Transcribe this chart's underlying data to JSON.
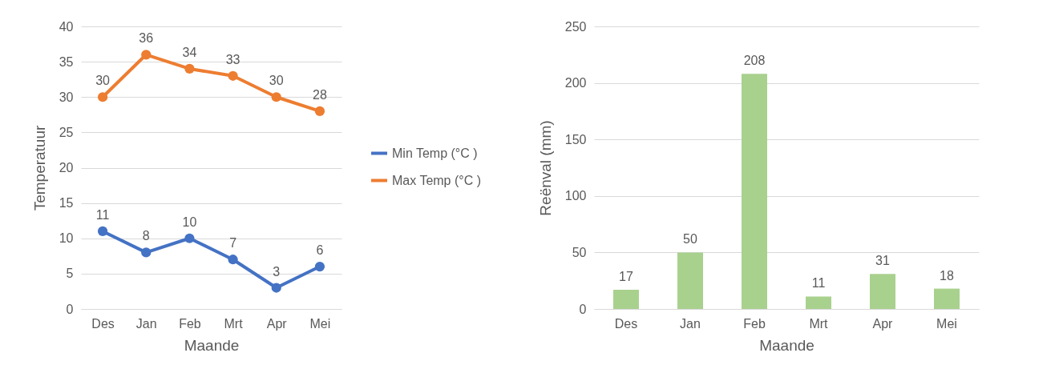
{
  "chart_data": [
    {
      "type": "line",
      "xlabel": "Maande",
      "ylabel": "Temperatuur",
      "categories": [
        "Des",
        "Jan",
        "Feb",
        "Mrt",
        "Apr",
        "Mei"
      ],
      "series": [
        {
          "name": "Min Temp (°C )",
          "color": "#4472c4",
          "values": [
            11,
            8,
            10,
            7,
            3,
            6
          ]
        },
        {
          "name": "Max Temp (°C )",
          "color": "#ed7d31",
          "values": [
            30,
            36,
            34,
            33,
            30,
            28
          ]
        }
      ],
      "ylim": [
        0,
        40
      ],
      "yticks": [
        0,
        5,
        10,
        15,
        20,
        25,
        30,
        35,
        40
      ],
      "grid": "y",
      "legend": "right",
      "marker": "circle",
      "data_labels": true
    },
    {
      "type": "bar",
      "xlabel": "Maande",
      "ylabel": "Reënval (mm)",
      "categories": [
        "Des",
        "Jan",
        "Feb",
        "Mrt",
        "Apr",
        "Mei"
      ],
      "values": [
        17,
        50,
        208,
        11,
        31,
        18
      ],
      "color": "#a9d18e",
      "ylim": [
        0,
        250
      ],
      "yticks": [
        0,
        50,
        100,
        150,
        200,
        250
      ],
      "grid": "y",
      "data_labels": true
    }
  ]
}
